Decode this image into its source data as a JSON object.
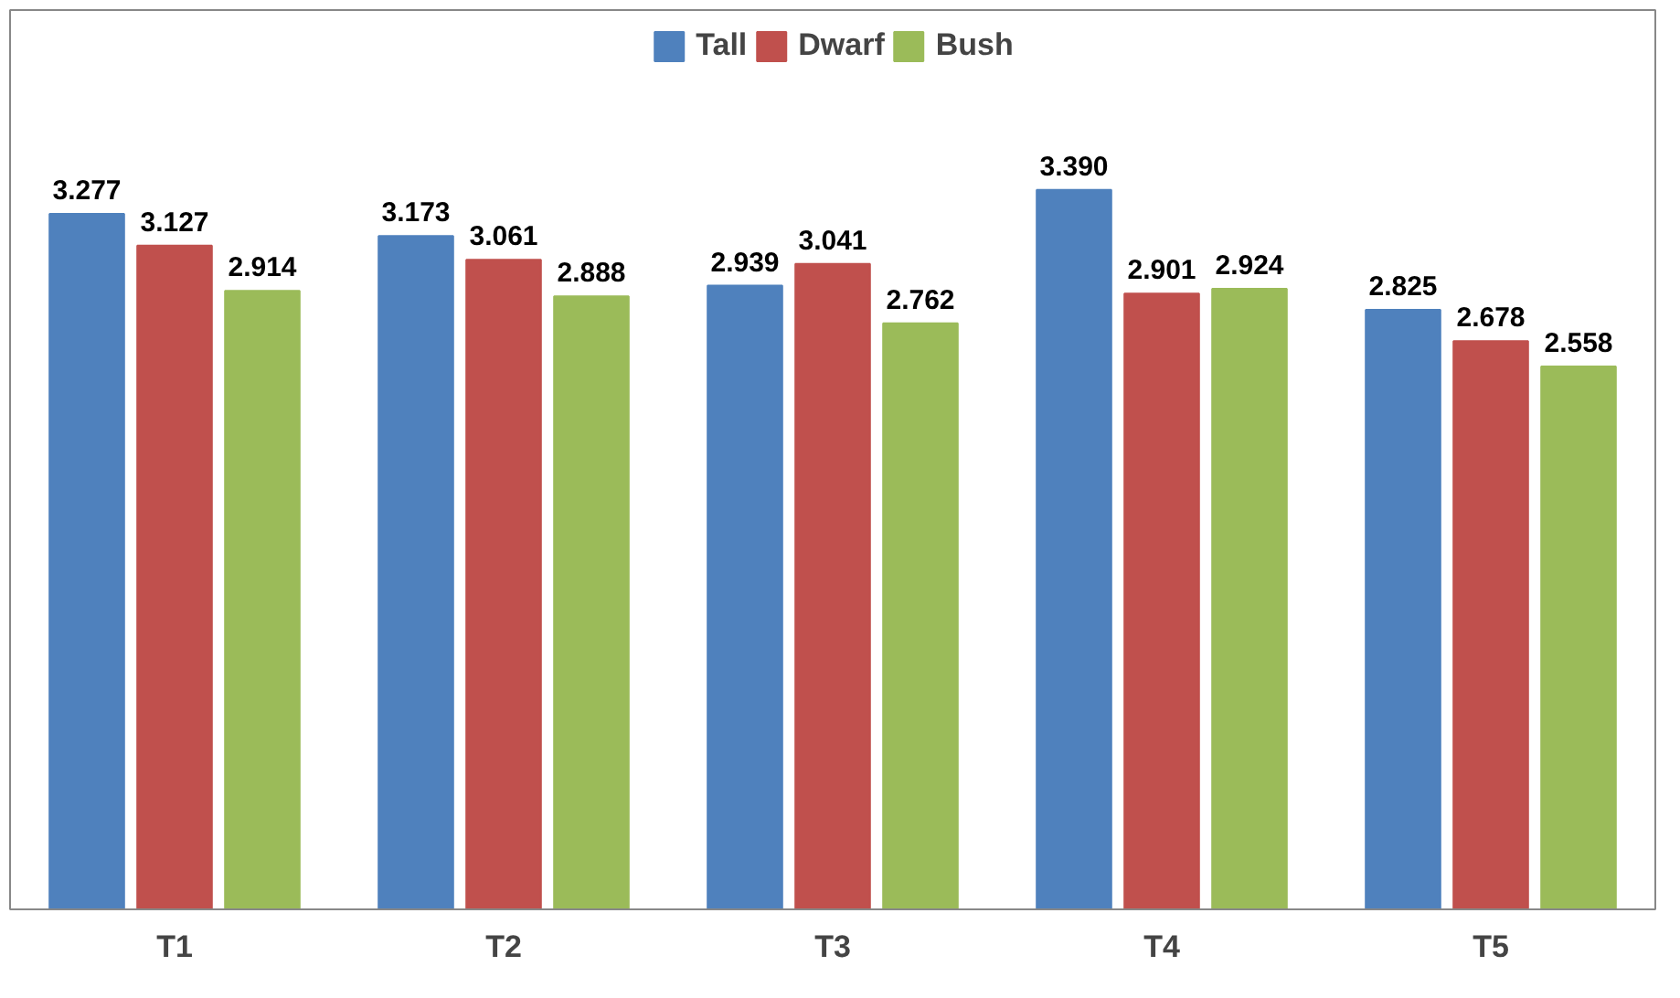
{
  "chart_data": {
    "type": "bar",
    "categories": [
      "T1",
      "T2",
      "T3",
      "T4",
      "T5"
    ],
    "series": [
      {
        "name": "Tall",
        "color": "#4f81bd",
        "values": [
          3.277,
          3.173,
          2.939,
          3.39,
          2.825
        ],
        "value_labels": [
          "3.277",
          "3.173",
          "2.939",
          "3.390",
          "2.825"
        ]
      },
      {
        "name": "Dwarf",
        "color": "#c0504d",
        "values": [
          3.127,
          3.061,
          3.041,
          2.901,
          2.678
        ],
        "value_labels": [
          "3.127",
          "3.061",
          "3.041",
          "2.901",
          "2.678"
        ]
      },
      {
        "name": "Bush",
        "color": "#9bbb59",
        "values": [
          2.914,
          2.888,
          2.762,
          2.924,
          2.558
        ],
        "value_labels": [
          "2.914",
          "2.888",
          "2.762",
          "2.924",
          "2.558"
        ]
      }
    ],
    "legend": "top",
    "tick_labels": "x"
  }
}
